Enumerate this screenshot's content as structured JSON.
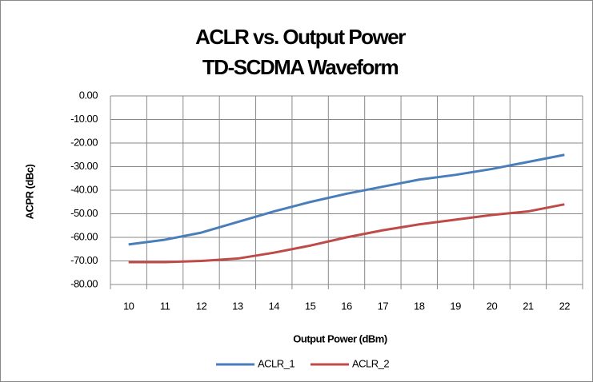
{
  "chart_data": {
    "type": "line",
    "title": "ACLR vs. Output Power",
    "subtitle": "TD-SCDMA Waveform",
    "x_label": "Output Power (dBm)",
    "y_label": "ACPR (dBc)",
    "categories": [
      "10",
      "11",
      "12",
      "13",
      "14",
      "15",
      "16",
      "17",
      "18",
      "19",
      "20",
      "21",
      "22"
    ],
    "series": [
      {
        "name": "ACLR_1",
        "color": "#4a7ebb",
        "values": [
          -63,
          -61,
          -58,
          -53.5,
          -49,
          -45,
          -41.5,
          -38.5,
          -35.5,
          -33.5,
          -31,
          -28,
          -25
        ]
      },
      {
        "name": "ACLR_2",
        "color": "#be4b48",
        "values": [
          -70.5,
          -70.5,
          -70,
          -69,
          -66.5,
          -63.5,
          -60,
          -57,
          -54.5,
          -52.5,
          -50.5,
          -49,
          -46
        ]
      }
    ],
    "ylim": [
      -80,
      0
    ],
    "yticks": [
      {
        "value": 0,
        "label": "0.00"
      },
      {
        "value": -10,
        "label": "-10.00"
      },
      {
        "value": -20,
        "label": "-20.00"
      },
      {
        "value": -30,
        "label": "-30.00"
      },
      {
        "value": -40,
        "label": "-40.00"
      },
      {
        "value": -50,
        "label": "-50.00"
      },
      {
        "value": -60,
        "label": "-60.00"
      },
      {
        "value": -70,
        "label": "-70.00"
      },
      {
        "value": -80,
        "label": "-80.00"
      }
    ],
    "grid": true,
    "legend": "bottom"
  }
}
